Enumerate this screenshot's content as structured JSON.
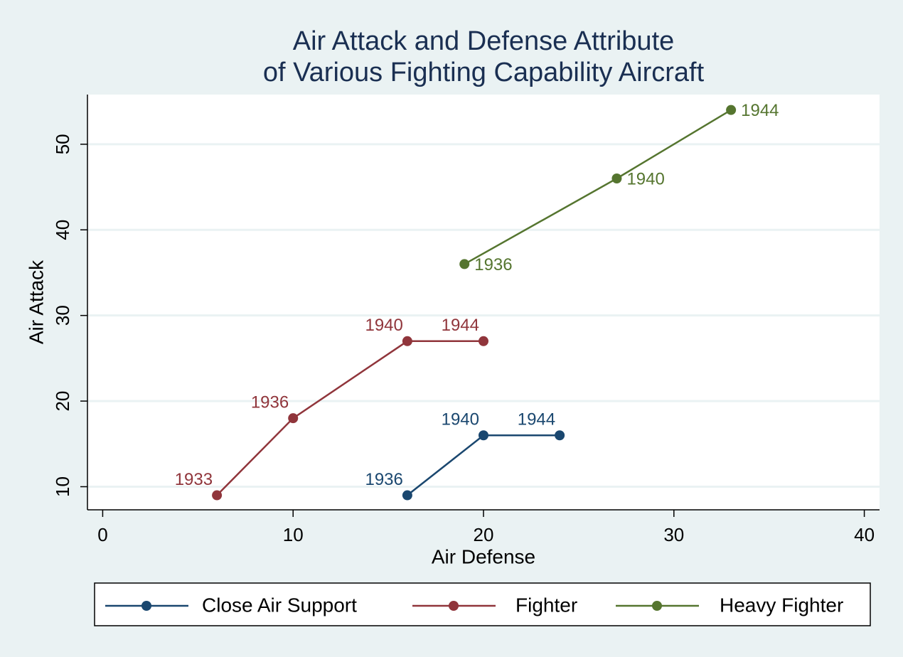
{
  "chart_data": {
    "type": "line",
    "title": [
      "Air Attack and Defense Attribute",
      "of Various Fighting Capability Aircraft"
    ],
    "x_label": "Air Defense",
    "y_label": "Air Attack",
    "series": [
      {
        "name": "Close Air Support",
        "color": "#1a476f",
        "x": [
          16,
          20,
          24
        ],
        "values": [
          9,
          16,
          16
        ],
        "point_labels": [
          "1936",
          "1940",
          "1944"
        ],
        "label_position": "nw"
      },
      {
        "name": "Fighter",
        "color": "#90353b",
        "x": [
          6,
          10,
          16,
          20
        ],
        "values": [
          9,
          18,
          27,
          27
        ],
        "point_labels": [
          "1933",
          "1936",
          "1940",
          "1944"
        ],
        "label_position": "nw"
      },
      {
        "name": "Heavy Fighter",
        "color": "#55752f",
        "x": [
          19,
          27,
          33
        ],
        "values": [
          36,
          46,
          54
        ],
        "point_labels": [
          "1936",
          "1940",
          "1944"
        ],
        "label_position": "e"
      }
    ],
    "xlim": [
      -0.8,
      40.8
    ],
    "xticks": [
      0,
      10,
      20,
      30,
      40
    ],
    "ylim": [
      7.3,
      55.8
    ],
    "yticks": [
      10,
      20,
      30,
      40,
      50
    ],
    "grid": true,
    "legend": "bottom"
  }
}
